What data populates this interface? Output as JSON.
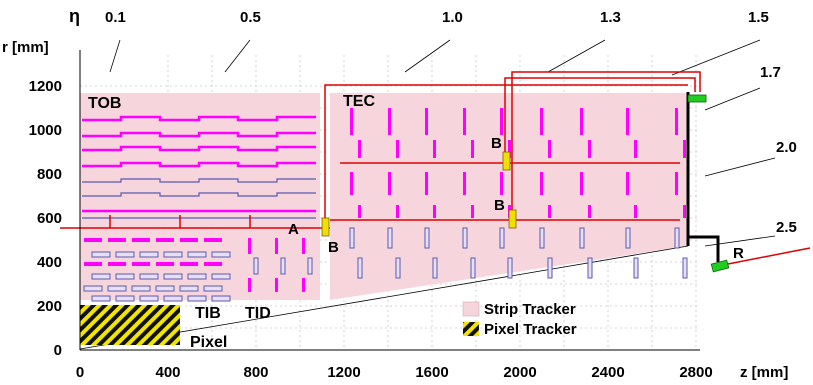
{
  "axes": {
    "eta_symbol": "η",
    "r_label": "r [mm]",
    "z_label": "z [mm]",
    "r_ticks": [
      "0",
      "200",
      "400",
      "600",
      "800",
      "1000",
      "1200"
    ],
    "z_ticks": [
      "0",
      "400",
      "800",
      "1200",
      "1600",
      "2000",
      "2400",
      "2800"
    ],
    "eta_values": [
      "0.1",
      "0.5",
      "1.0",
      "1.3",
      "1.5",
      "1.7",
      "2.0",
      "2.5"
    ]
  },
  "labels": {
    "tob": "TOB",
    "tec": "TEC",
    "tib": "TIB",
    "tid": "TID",
    "pixel": "Pixel",
    "a": "A",
    "b1": "B",
    "b2": "B",
    "b3": "B",
    "r": "R"
  },
  "legend": {
    "strip": "Strip Tracker",
    "pixel": "Pixel Tracker"
  },
  "colors": {
    "strip_region": "#f6d6dc",
    "module_single": "#ff00ff",
    "module_double": "#5a5ab4",
    "service_line": "#e00000",
    "patch_panel": "#f0e000",
    "support": "#22cc22"
  }
}
